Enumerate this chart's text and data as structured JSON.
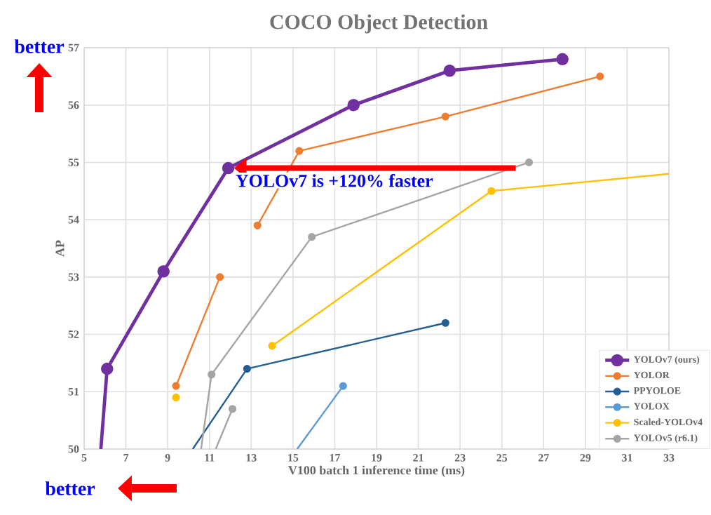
{
  "chart_data": {
    "type": "line",
    "title": "COCO Object Detection",
    "xlabel": "V100 batch 1 inference time (ms)",
    "ylabel": "AP",
    "xlim": [
      5,
      33
    ],
    "xticks": [
      5,
      7,
      9,
      11,
      13,
      15,
      17,
      19,
      21,
      23,
      25,
      27,
      29,
      31,
      33
    ],
    "ylim": [
      50,
      57
    ],
    "yticks": [
      50,
      51,
      52,
      53,
      54,
      55,
      56,
      57
    ],
    "grid": true,
    "legend": "bottom right",
    "marker": "circle",
    "line_style": "solid",
    "series": [
      {
        "name": "YOLOv7 (ours)",
        "color": "#7030a0",
        "x": [
          5.8,
          6.1,
          8.8,
          11.9,
          17.9,
          22.5,
          27.9
        ],
        "values": [
          50,
          51.4,
          53.1,
          54.9,
          56.0,
          56.6,
          56.8
        ]
      },
      {
        "name": "YOLOR",
        "color": "#ed7d31",
        "x": [
          9.4,
          11.5,
          null,
          13.3,
          15.3,
          22.3,
          29.7
        ],
        "values": [
          51.1,
          53.0,
          null,
          53.9,
          55.2,
          55.8,
          56.5
        ]
      },
      {
        "name": "PPYOLOE",
        "color": "#255e91",
        "x": [
          10.2,
          12.8,
          22.3
        ],
        "values": [
          50,
          51.4,
          52.2
        ]
      },
      {
        "name": "YOLOX",
        "color": "#5b9bd5",
        "x": [
          15.2,
          17.4
        ],
        "values": [
          50,
          51.1
        ]
      },
      {
        "name": "Scaled-YOLOv4",
        "color": "#ffc000",
        "x": [
          9.4,
          null,
          14.0,
          24.5,
          33
        ],
        "values": [
          50.9,
          null,
          51.8,
          54.5,
          54.8
        ]
      },
      {
        "name": "YOLOv5 (r6.1)",
        "color": "#a5a5a5",
        "x": [
          11.3,
          12.1,
          null,
          10.6,
          11.1,
          15.9,
          26.3
        ],
        "values": [
          50,
          50.7,
          null,
          50,
          51.3,
          53.7,
          55.0
        ]
      }
    ],
    "annotations": [
      {
        "text": "YOLOv7 is +120% faster",
        "x": 11.9,
        "y": 54.9
      },
      "better",
      "better"
    ]
  }
}
